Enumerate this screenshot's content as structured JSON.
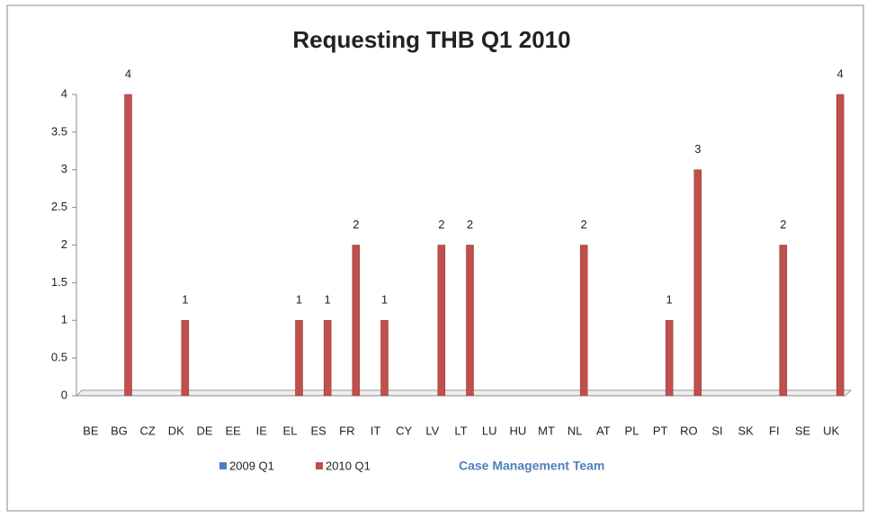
{
  "chart_data": {
    "type": "bar",
    "title": "Requesting THB Q1 2010",
    "categories": [
      "BE",
      "BG",
      "CZ",
      "DK",
      "DE",
      "EE",
      "IE",
      "EL",
      "ES",
      "FR",
      "IT",
      "CY",
      "LV",
      "LT",
      "LU",
      "HU",
      "MT",
      "NL",
      "AT",
      "PL",
      "PT",
      "RO",
      "SI",
      "SK",
      "FI",
      "SE",
      "UK"
    ],
    "series": [
      {
        "name": "2009 Q1",
        "color": "#4f81bd",
        "values": [
          0,
          0,
          0,
          0,
          0,
          0,
          0,
          0,
          0,
          0,
          0,
          0,
          0,
          0,
          0,
          0,
          0,
          0,
          0,
          0,
          0,
          0,
          0,
          0,
          0,
          0,
          0
        ]
      },
      {
        "name": "2010 Q1",
        "color": "#c0504d",
        "values": [
          0,
          4,
          0,
          1,
          0,
          0,
          0,
          1,
          1,
          2,
          1,
          0,
          2,
          2,
          0,
          0,
          0,
          2,
          0,
          0,
          1,
          3,
          0,
          0,
          2,
          0,
          4
        ],
        "value_labels": [
          null,
          "4",
          null,
          "1",
          null,
          null,
          null,
          "1",
          "1",
          "2",
          "1",
          null,
          "2",
          "2",
          null,
          null,
          null,
          "2",
          null,
          null,
          "1",
          "3",
          null,
          null,
          "2",
          null,
          "4"
        ]
      }
    ],
    "ylim": [
      0,
      4
    ],
    "yticks": [
      0,
      0.5,
      1,
      1.5,
      2,
      2.5,
      3,
      3.5,
      4
    ],
    "grid": false,
    "annotations": [
      "Case Management Team"
    ],
    "legend": "bottom"
  }
}
